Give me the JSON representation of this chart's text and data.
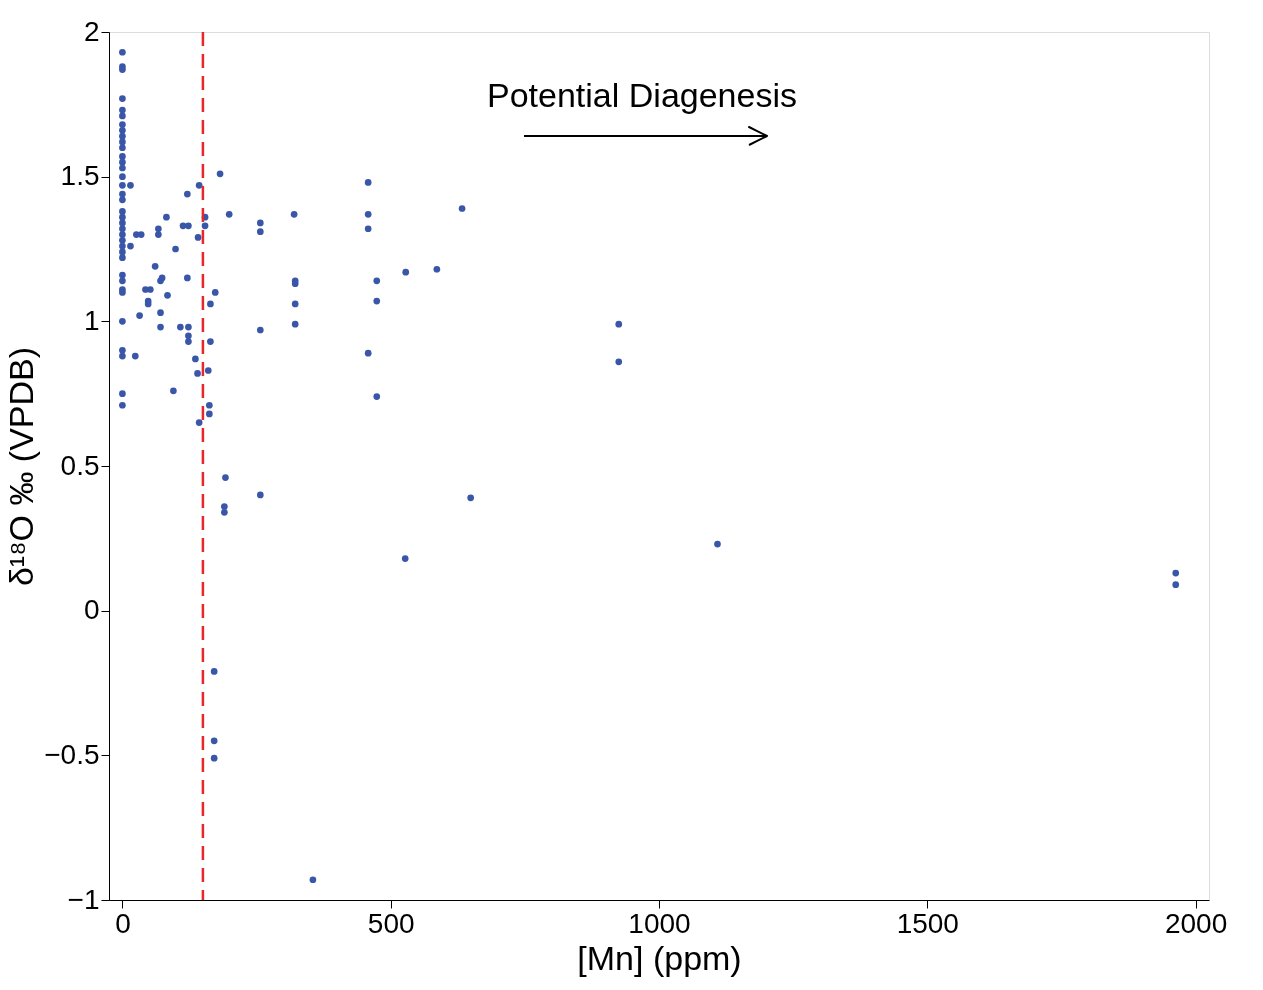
{
  "chart_data": {
    "type": "scatter",
    "xlabel": "[Mn] (ppm)",
    "ylabel": "δ¹⁸O ‰ (VPDB)",
    "x": [
      0,
      0,
      0,
      0,
      0,
      0,
      0,
      0,
      0,
      0,
      0,
      0,
      0,
      0,
      0,
      0,
      0,
      0,
      0,
      0,
      0,
      0,
      0,
      0,
      0,
      0,
      0,
      0,
      0,
      0,
      0,
      0,
      0,
      0,
      0,
      0,
      15,
      15,
      24,
      26,
      35,
      32,
      43,
      52,
      48,
      48,
      61,
      67,
      67,
      71,
      74,
      71,
      71,
      82,
      84,
      95,
      99,
      108,
      113,
      123,
      121,
      121,
      123,
      123,
      123,
      136,
      140,
      141,
      143,
      143,
      154,
      154,
      160,
      164,
      162,
      162,
      164,
      173,
      182,
      199,
      192,
      190,
      190,
      171,
      171,
      171,
      355,
      257,
      257,
      257,
      257,
      320,
      322,
      322,
      322,
      322,
      458,
      458,
      458,
      458,
      474,
      474,
      474,
      528,
      586,
      633,
      649,
      527,
      925,
      925,
      1109,
      1963,
      1963
    ],
    "series": [
      {
        "color": "#3a56a8",
        "values": [
          1.93,
          1.88,
          1.87,
          1.77,
          1.73,
          1.71,
          1.68,
          1.66,
          1.64,
          1.62,
          1.6,
          1.57,
          1.55,
          1.53,
          1.5,
          1.47,
          1.44,
          1.42,
          1.38,
          1.36,
          1.34,
          1.32,
          1.3,
          1.28,
          1.26,
          1.24,
          1.22,
          1.16,
          1.14,
          1.11,
          1.1,
          1.0,
          0.9,
          0.88,
          0.75,
          0.71,
          1.47,
          1.26,
          0.88,
          1.3,
          1.3,
          1.02,
          1.11,
          1.11,
          1.07,
          1.06,
          1.19,
          1.32,
          1.3,
          1.14,
          1.15,
          1.03,
          0.98,
          1.36,
          1.09,
          0.76,
          1.25,
          0.98,
          1.33,
          1.33,
          1.44,
          1.15,
          0.98,
          0.95,
          0.93,
          0.87,
          0.82,
          1.29,
          1.47,
          0.65,
          1.36,
          1.33,
          0.83,
          0.93,
          0.71,
          0.68,
          1.06,
          1.1,
          1.51,
          1.37,
          0.46,
          0.36,
          0.34,
          -0.21,
          -0.45,
          -0.51,
          -0.93,
          1.34,
          1.31,
          0.97,
          0.4,
          1.37,
          1.14,
          1.13,
          1.06,
          0.99,
          1.48,
          1.37,
          1.32,
          0.89,
          1.14,
          1.07,
          0.74,
          1.17,
          1.18,
          1.39,
          0.39,
          0.18,
          0.99,
          0.86,
          0.23,
          0.13,
          0.09
        ]
      }
    ],
    "xlim": [
      -25,
      2025
    ],
    "ylim": [
      -1,
      2
    ],
    "xticks": [
      0,
      500,
      1000,
      1500,
      2000
    ],
    "yticks": [
      {
        "value": -1,
        "label": "−1"
      },
      {
        "value": -0.5,
        "label": "−0.5"
      },
      0,
      0.5,
      1,
      1.5,
      2
    ],
    "ref_lines": [
      {
        "axis": "x",
        "value": 150,
        "color": "#e8262b",
        "line_style": "dashed"
      }
    ],
    "annotations": [
      "Potential Diagenesis"
    ],
    "grid": false,
    "marker": "circle"
  }
}
